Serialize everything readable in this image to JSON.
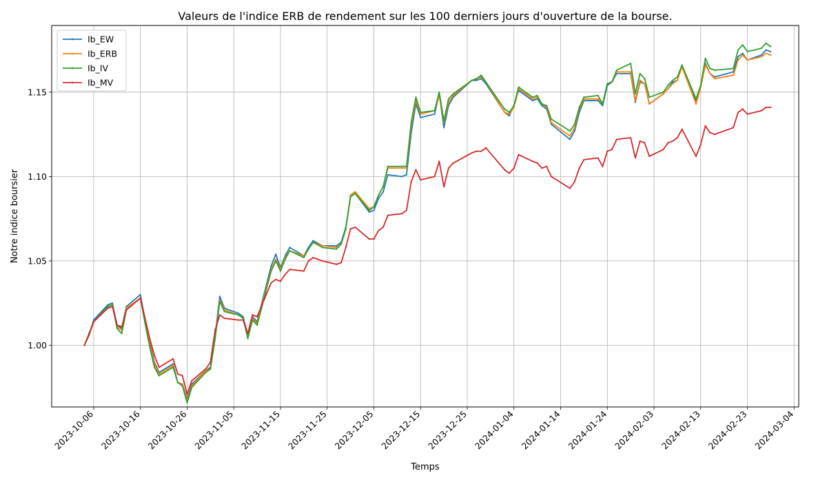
{
  "chart_data": {
    "type": "line",
    "title": "Valeurs de l'indice ERB de rendement sur les 100 derniers jours d'ouverture de la bourse.",
    "xlabel": "Temps",
    "ylabel": "Notre indice boursier",
    "x_type": "date",
    "xlim": [
      "2023-09-27",
      "2024-03-05"
    ],
    "ylim": [
      0.9635,
      1.1895
    ],
    "x_ticks": [
      "2023-10-06",
      "2023-10-16",
      "2023-10-26",
      "2023-11-05",
      "2023-11-15",
      "2023-11-25",
      "2023-12-05",
      "2023-12-15",
      "2023-12-25",
      "2024-01-04",
      "2024-01-14",
      "2024-01-24",
      "2024-02-03",
      "2024-02-13",
      "2024-02-23",
      "2024-03-04"
    ],
    "y_ticks": [
      1.0,
      1.05,
      1.1,
      1.15
    ],
    "y_tick_labels": [
      "1.00",
      "1.05",
      "1.10",
      "1.15"
    ],
    "grid": true,
    "legend_position": "upper-left",
    "x": [
      "2023-10-04",
      "2023-10-05",
      "2023-10-06",
      "2023-10-09",
      "2023-10-10",
      "2023-10-11",
      "2023-10-12",
      "2023-10-13",
      "2023-10-16",
      "2023-10-17",
      "2023-10-18",
      "2023-10-19",
      "2023-10-20",
      "2023-10-23",
      "2023-10-24",
      "2023-10-25",
      "2023-10-26",
      "2023-10-27",
      "2023-10-30",
      "2023-10-31",
      "2023-11-01",
      "2023-11-02",
      "2023-11-03",
      "2023-11-06",
      "2023-11-07",
      "2023-11-08",
      "2023-11-09",
      "2023-11-10",
      "2023-11-13",
      "2023-11-14",
      "2023-11-15",
      "2023-11-16",
      "2023-11-17",
      "2023-11-20",
      "2023-11-21",
      "2023-11-22",
      "2023-11-24",
      "2023-11-27",
      "2023-11-28",
      "2023-11-29",
      "2023-11-30",
      "2023-12-01",
      "2023-12-04",
      "2023-12-05",
      "2023-12-06",
      "2023-12-07",
      "2023-12-08",
      "2023-12-11",
      "2023-12-12",
      "2023-12-13",
      "2023-12-14",
      "2023-12-15",
      "2023-12-18",
      "2023-12-19",
      "2023-12-20",
      "2023-12-21",
      "2023-12-22",
      "2023-12-26",
      "2023-12-27",
      "2023-12-28",
      "2023-12-29",
      "2024-01-02",
      "2024-01-03",
      "2024-01-04",
      "2024-01-05",
      "2024-01-08",
      "2024-01-09",
      "2024-01-10",
      "2024-01-11",
      "2024-01-12",
      "2024-01-16",
      "2024-01-17",
      "2024-01-18",
      "2024-01-19",
      "2024-01-22",
      "2024-01-23",
      "2024-01-24",
      "2024-01-25",
      "2024-01-26",
      "2024-01-29",
      "2024-01-30",
      "2024-01-31",
      "2024-02-01",
      "2024-02-02",
      "2024-02-05",
      "2024-02-06",
      "2024-02-07",
      "2024-02-08",
      "2024-02-09",
      "2024-02-12",
      "2024-02-13",
      "2024-02-14",
      "2024-02-15",
      "2024-02-16",
      "2024-02-20",
      "2024-02-21",
      "2024-02-22",
      "2024-02-23",
      "2024-02-26",
      "2024-02-27",
      "2024-02-28"
    ],
    "series": [
      {
        "name": "Ib_EW",
        "color": "#1f77b4",
        "values": [
          1.0,
          1.006,
          1.015,
          1.024,
          1.025,
          1.012,
          1.01,
          1.023,
          1.03,
          1.015,
          1.002,
          0.99,
          0.984,
          0.989,
          0.978,
          0.977,
          0.968,
          0.977,
          0.985,
          0.987,
          1.006,
          1.029,
          1.022,
          1.019,
          1.017,
          1.006,
          1.017,
          1.014,
          1.047,
          1.054,
          1.046,
          1.053,
          1.058,
          1.053,
          1.058,
          1.062,
          1.059,
          1.059,
          1.061,
          1.07,
          1.088,
          1.09,
          1.079,
          1.08,
          1.087,
          1.091,
          1.101,
          1.1,
          1.101,
          1.126,
          1.143,
          1.135,
          1.137,
          1.149,
          1.129,
          1.142,
          1.147,
          1.157,
          1.157,
          1.158,
          1.155,
          1.138,
          1.136,
          1.142,
          1.151,
          1.145,
          1.146,
          1.142,
          1.14,
          1.131,
          1.122,
          1.127,
          1.138,
          1.145,
          1.145,
          1.142,
          1.154,
          1.156,
          1.161,
          1.161,
          1.144,
          1.156,
          1.155,
          1.143,
          1.149,
          1.152,
          1.156,
          1.157,
          1.166,
          1.145,
          1.153,
          1.167,
          1.161,
          1.159,
          1.162,
          1.171,
          1.173,
          1.169,
          1.172,
          1.175,
          1.174
        ]
      },
      {
        "name": "Ib_ERB",
        "color": "#ff7f0e",
        "values": [
          1.0,
          1.006,
          1.014,
          1.023,
          1.024,
          1.011,
          1.009,
          1.022,
          1.028,
          1.014,
          1.001,
          0.989,
          0.983,
          0.988,
          0.978,
          0.977,
          0.967,
          0.976,
          0.985,
          0.986,
          1.005,
          1.027,
          1.021,
          1.018,
          1.016,
          1.005,
          1.016,
          1.013,
          1.045,
          1.051,
          1.045,
          1.052,
          1.056,
          1.053,
          1.057,
          1.061,
          1.059,
          1.058,
          1.06,
          1.069,
          1.089,
          1.091,
          1.081,
          1.082,
          1.089,
          1.094,
          1.105,
          1.105,
          1.105,
          1.13,
          1.145,
          1.137,
          1.139,
          1.148,
          1.132,
          1.144,
          1.148,
          1.157,
          1.158,
          1.159,
          1.156,
          1.138,
          1.137,
          1.141,
          1.152,
          1.146,
          1.147,
          1.143,
          1.141,
          1.132,
          1.124,
          1.129,
          1.14,
          1.146,
          1.146,
          1.143,
          1.155,
          1.156,
          1.162,
          1.162,
          1.145,
          1.157,
          1.155,
          1.143,
          1.149,
          1.152,
          1.155,
          1.157,
          1.165,
          1.143,
          1.153,
          1.166,
          1.161,
          1.158,
          1.16,
          1.169,
          1.172,
          1.169,
          1.171,
          1.173,
          1.172
        ]
      },
      {
        "name": "Ib_IV",
        "color": "#2ca02c",
        "values": [
          1.0,
          1.006,
          1.014,
          1.023,
          1.024,
          1.01,
          1.007,
          1.021,
          1.028,
          1.013,
          0.999,
          0.987,
          0.982,
          0.987,
          0.978,
          0.976,
          0.966,
          0.975,
          0.984,
          0.986,
          1.004,
          1.026,
          1.02,
          1.018,
          1.016,
          1.004,
          1.015,
          1.012,
          1.044,
          1.05,
          1.044,
          1.051,
          1.056,
          1.052,
          1.057,
          1.061,
          1.058,
          1.057,
          1.06,
          1.069,
          1.088,
          1.09,
          1.08,
          1.082,
          1.089,
          1.094,
          1.106,
          1.106,
          1.106,
          1.132,
          1.147,
          1.138,
          1.139,
          1.15,
          1.133,
          1.146,
          1.149,
          1.157,
          1.158,
          1.16,
          1.156,
          1.14,
          1.138,
          1.142,
          1.153,
          1.147,
          1.148,
          1.143,
          1.142,
          1.134,
          1.127,
          1.131,
          1.141,
          1.147,
          1.148,
          1.143,
          1.155,
          1.156,
          1.163,
          1.167,
          1.149,
          1.161,
          1.158,
          1.147,
          1.15,
          1.154,
          1.157,
          1.159,
          1.166,
          1.146,
          1.154,
          1.17,
          1.164,
          1.163,
          1.164,
          1.175,
          1.178,
          1.174,
          1.176,
          1.179,
          1.177
        ]
      },
      {
        "name": "Ib_MV",
        "color": "#d62728",
        "values": [
          1.0,
          1.007,
          1.014,
          1.022,
          1.023,
          1.012,
          1.011,
          1.021,
          1.028,
          1.016,
          1.004,
          0.994,
          0.987,
          0.992,
          0.983,
          0.982,
          0.971,
          0.979,
          0.986,
          0.99,
          1.009,
          1.018,
          1.016,
          1.015,
          1.015,
          1.007,
          1.018,
          1.017,
          1.037,
          1.039,
          1.038,
          1.042,
          1.045,
          1.044,
          1.05,
          1.052,
          1.05,
          1.048,
          1.049,
          1.058,
          1.069,
          1.07,
          1.063,
          1.063,
          1.068,
          1.07,
          1.077,
          1.078,
          1.08,
          1.097,
          1.104,
          1.098,
          1.1,
          1.109,
          1.094,
          1.105,
          1.108,
          1.114,
          1.115,
          1.115,
          1.117,
          1.104,
          1.102,
          1.105,
          1.113,
          1.109,
          1.108,
          1.105,
          1.106,
          1.1,
          1.093,
          1.097,
          1.105,
          1.11,
          1.111,
          1.106,
          1.115,
          1.116,
          1.122,
          1.123,
          1.111,
          1.121,
          1.12,
          1.112,
          1.116,
          1.12,
          1.121,
          1.123,
          1.128,
          1.112,
          1.119,
          1.13,
          1.126,
          1.125,
          1.129,
          1.138,
          1.14,
          1.137,
          1.139,
          1.141,
          1.141
        ]
      }
    ]
  }
}
